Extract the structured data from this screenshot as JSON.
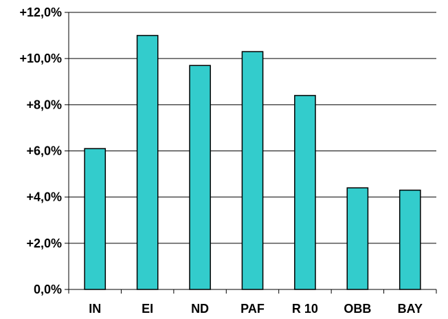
{
  "chart_data": {
    "type": "bar",
    "title": "",
    "xlabel": "",
    "ylabel": "",
    "categories": [
      "IN",
      "EI",
      "ND",
      "PAF",
      "R 10",
      "OBB",
      "BAY"
    ],
    "values": [
      6.1,
      11.0,
      9.7,
      10.3,
      8.4,
      4.4,
      4.3
    ],
    "ylim": [
      0,
      12
    ],
    "yticks": [
      0,
      2,
      4,
      6,
      8,
      10,
      12
    ],
    "ytick_labels": [
      "0,0%",
      "+2,0%",
      "+4,0%",
      "+6,0%",
      "+8,0%",
      "+10,0%",
      "+12,0%"
    ],
    "grid": true,
    "legend": "none",
    "bar_color": "#33CCCC",
    "bar_edge_color": "#000000",
    "grid_color": "#000000"
  }
}
